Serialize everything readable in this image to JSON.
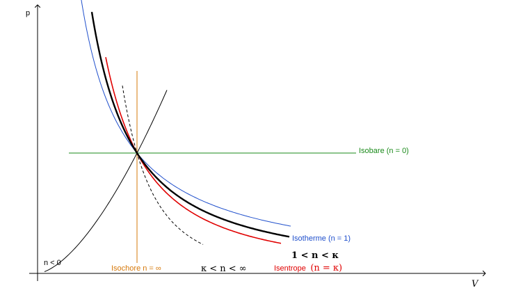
{
  "axes": {
    "y_label": "p",
    "x_label": "V"
  },
  "curves": [
    {
      "key": "isobare",
      "label": "Isobare (n = 0)",
      "color": "#1a8a1a",
      "n": "0"
    },
    {
      "key": "isotherme",
      "label": "Isotherme (n = 1)",
      "color": "#1f4fcc",
      "n": "1"
    },
    {
      "key": "polytrope",
      "label": "1 < n < κ",
      "color": "#000000",
      "n": "between 1 and kappa"
    },
    {
      "key": "isentrope",
      "label": "Isentrope",
      "label_math": "(n = κ)",
      "color": "#e00000",
      "n": "kappa"
    },
    {
      "key": "steep",
      "label": "κ < n < ∞",
      "color": "#000000",
      "n": "between kappa and infinity",
      "style": "dashed"
    },
    {
      "key": "isochore",
      "label": "Isochore n = ∞",
      "color": "#d6780a",
      "n": "infinity"
    },
    {
      "key": "negative",
      "label": "n < 0",
      "color": "#000000",
      "n": "negative"
    }
  ]
}
